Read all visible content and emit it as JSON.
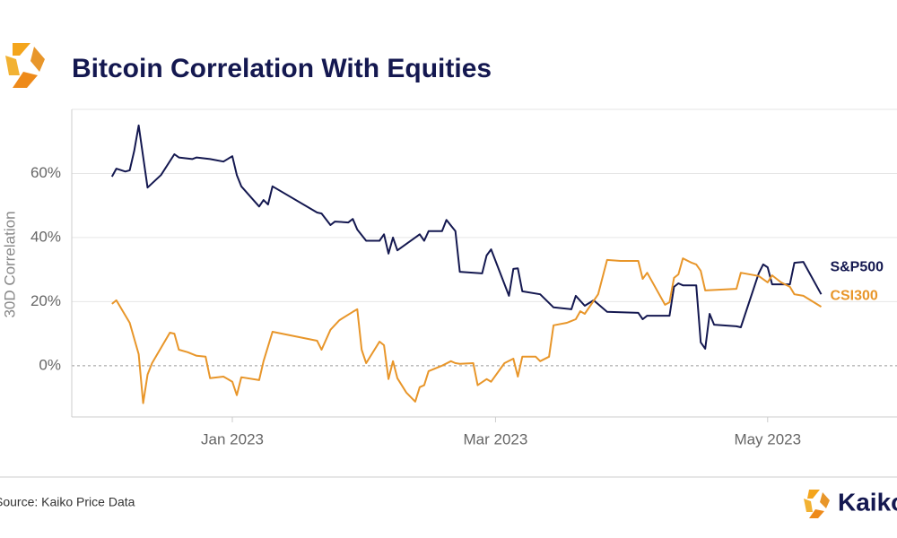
{
  "chart_data": {
    "type": "line",
    "title": "Bitcoin Correlation With Equities",
    "ylabel": "30D Correlation",
    "source": "Source: Kaiko Price Data",
    "brand": "Kaiko",
    "xlim": [
      "2022-11-26",
      "2023-05-30"
    ],
    "xticks": [
      {
        "value": "2023-01-01",
        "label": "Jan 2023"
      },
      {
        "value": "2023-03-01",
        "label": "Mar 2023"
      },
      {
        "value": "2023-05-01",
        "label": "May 2023"
      }
    ],
    "ylim": [
      -16,
      80
    ],
    "yticks": [
      {
        "value": 0,
        "label": "0%"
      },
      {
        "value": 20,
        "label": "20%"
      },
      {
        "value": 40,
        "label": "40%"
      },
      {
        "value": 60,
        "label": "60%"
      }
    ],
    "grid": true,
    "series": [
      {
        "name": "S&P500",
        "color": "#141850",
        "x": [
          "2022-12-05",
          "2022-12-06",
          "2022-12-08",
          "2022-12-09",
          "2022-12-10",
          "2022-12-11",
          "2022-12-13",
          "2022-12-16",
          "2022-12-19",
          "2022-12-20",
          "2022-12-23",
          "2022-12-24",
          "2022-12-27",
          "2022-12-30",
          "2023-01-01",
          "2023-01-02",
          "2023-01-03",
          "2023-01-07",
          "2023-01-08",
          "2023-01-09",
          "2023-01-10",
          "2023-01-20",
          "2023-01-21",
          "2023-01-23",
          "2023-01-24",
          "2023-01-27",
          "2023-01-28",
          "2023-01-29",
          "2023-01-31",
          "2023-02-03",
          "2023-02-04",
          "2023-02-05",
          "2023-02-06",
          "2023-02-07",
          "2023-02-11",
          "2023-02-12",
          "2023-02-13",
          "2023-02-14",
          "2023-02-17",
          "2023-02-18",
          "2023-02-20",
          "2023-02-21",
          "2023-02-26",
          "2023-02-27",
          "2023-02-28",
          "2023-03-04",
          "2023-03-05",
          "2023-03-06",
          "2023-03-07",
          "2023-03-11",
          "2023-03-14",
          "2023-03-18",
          "2023-03-19",
          "2023-03-21",
          "2023-03-23",
          "2023-03-26",
          "2023-04-02",
          "2023-04-03",
          "2023-04-04",
          "2023-04-09",
          "2023-04-10",
          "2023-04-11",
          "2023-04-12",
          "2023-04-15",
          "2023-04-16",
          "2023-04-17",
          "2023-04-18",
          "2023-04-19",
          "2023-04-24",
          "2023-04-25",
          "2023-04-29",
          "2023-04-30",
          "2023-05-01",
          "2023-05-02",
          "2023-05-06",
          "2023-05-07",
          "2023-05-09",
          "2023-05-13"
        ],
        "values": [
          59,
          61.5,
          60.6,
          61,
          67,
          75,
          55.6,
          59.5,
          66,
          65,
          64.5,
          65,
          64.5,
          63.7,
          65.4,
          59.5,
          56,
          49.7,
          51.7,
          50.3,
          56,
          47.8,
          47.5,
          43.9,
          45,
          44.7,
          45.8,
          42.5,
          39,
          39,
          41,
          35,
          40,
          36,
          40,
          41,
          39,
          42,
          42,
          45.5,
          42,
          29.3,
          28.8,
          34.4,
          36.3,
          21.8,
          30.2,
          30.4,
          23.2,
          22.3,
          18.2,
          17.6,
          21.8,
          18.7,
          20.4,
          16.8,
          16.5,
          14.5,
          15.6,
          15.6,
          24.6,
          25.7,
          25.1,
          25.1,
          7.3,
          5.3,
          16.2,
          12.8,
          12.3,
          12,
          28.8,
          31.6,
          30.7,
          25.4,
          25.4,
          32.1,
          32.4,
          22.3
        ]
      },
      {
        "name": "CSI300",
        "color": "#e8962a",
        "x": [
          "2022-12-05",
          "2022-12-06",
          "2022-12-09",
          "2022-12-11",
          "2022-12-12",
          "2022-12-13",
          "2022-12-14",
          "2022-12-18",
          "2022-12-19",
          "2022-12-20",
          "2022-12-22",
          "2022-12-24",
          "2022-12-26",
          "2022-12-27",
          "2022-12-30",
          "2023-01-01",
          "2023-01-02",
          "2023-01-03",
          "2023-01-07",
          "2023-01-08",
          "2023-01-10",
          "2023-01-20",
          "2023-01-21",
          "2023-01-23",
          "2023-01-25",
          "2023-01-28",
          "2023-01-29",
          "2023-01-30",
          "2023-01-31",
          "2023-02-03",
          "2023-02-04",
          "2023-02-05",
          "2023-02-06",
          "2023-02-07",
          "2023-02-09",
          "2023-02-11",
          "2023-02-12",
          "2023-02-13",
          "2023-02-14",
          "2023-02-17",
          "2023-02-19",
          "2023-02-20",
          "2023-02-21",
          "2023-02-24",
          "2023-02-25",
          "2023-02-27",
          "2023-02-28",
          "2023-03-03",
          "2023-03-05",
          "2023-03-06",
          "2023-03-07",
          "2023-03-10",
          "2023-03-11",
          "2023-03-13",
          "2023-03-14",
          "2023-03-17",
          "2023-03-19",
          "2023-03-20",
          "2023-03-21",
          "2023-03-24",
          "2023-03-26",
          "2023-03-29",
          "2023-04-02",
          "2023-04-03",
          "2023-04-04",
          "2023-04-08",
          "2023-04-09",
          "2023-04-10",
          "2023-04-11",
          "2023-04-12",
          "2023-04-14",
          "2023-04-15",
          "2023-04-16",
          "2023-04-17",
          "2023-04-24",
          "2023-04-25",
          "2023-04-29",
          "2023-05-01",
          "2023-05-02",
          "2023-05-04",
          "2023-05-06",
          "2023-05-07",
          "2023-05-09",
          "2023-05-13"
        ],
        "values": [
          19.3,
          20.4,
          13.4,
          3.6,
          -11.7,
          -2.8,
          0.8,
          10.3,
          10,
          5,
          4.2,
          3.1,
          2.8,
          -3.9,
          -3.4,
          -5,
          -9.2,
          -3.6,
          -4.5,
          1.4,
          10.6,
          7.8,
          5,
          11.2,
          14.2,
          16.8,
          17.6,
          5,
          0.8,
          7.5,
          6.4,
          -4.2,
          1.4,
          -3.9,
          -8.4,
          -11.2,
          -6.7,
          -6.1,
          -1.7,
          0,
          1.4,
          0.8,
          0.6,
          0.8,
          -6.1,
          -4.2,
          -5,
          0.8,
          2.2,
          -3.4,
          2.8,
          2.8,
          1.4,
          2.8,
          12.6,
          13.4,
          14.5,
          17,
          16.2,
          22.3,
          33,
          32.7,
          32.7,
          27.1,
          29,
          19,
          19.8,
          27.4,
          28.5,
          33.5,
          32.1,
          31.6,
          29.6,
          23.5,
          24,
          29,
          28,
          26,
          28.2,
          26,
          24.6,
          22.3,
          21.8,
          18.4
        ]
      }
    ]
  }
}
